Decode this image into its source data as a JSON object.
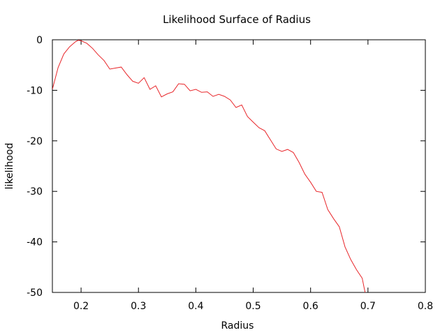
{
  "chart_data": {
    "type": "line",
    "title": "Likelihood Surface of Radius",
    "xlabel": "Radius",
    "ylabel": "likelihood",
    "xlim": [
      0.15,
      0.8
    ],
    "ylim": [
      -50,
      0
    ],
    "x_ticks": [
      0.2,
      0.3,
      0.4,
      0.5,
      0.6,
      0.7,
      0.8
    ],
    "x_tick_labels": [
      "0.2",
      "0.3",
      "0.4",
      "0.5",
      "0.6",
      "0.7",
      "0.8"
    ],
    "y_ticks": [
      0,
      -10,
      -20,
      -30,
      -40,
      -50
    ],
    "y_tick_labels": [
      "0",
      "-10",
      "-20",
      "-30",
      "-40",
      "-50"
    ],
    "grid": false,
    "series": [
      {
        "color": "#e8262a",
        "points": [
          [
            0.15,
            -9.8
          ],
          [
            0.16,
            -5.5
          ],
          [
            0.17,
            -2.8
          ],
          [
            0.18,
            -1.4
          ],
          [
            0.19,
            -0.4
          ],
          [
            0.195,
            -0.1
          ],
          [
            0.2,
            -0.2
          ],
          [
            0.21,
            -0.7
          ],
          [
            0.22,
            -1.7
          ],
          [
            0.23,
            -3.0
          ],
          [
            0.24,
            -4.1
          ],
          [
            0.25,
            -5.8
          ],
          [
            0.26,
            -5.6
          ],
          [
            0.27,
            -5.4
          ],
          [
            0.28,
            -6.9
          ],
          [
            0.29,
            -8.2
          ],
          [
            0.3,
            -8.6
          ],
          [
            0.31,
            -7.5
          ],
          [
            0.32,
            -9.8
          ],
          [
            0.33,
            -9.1
          ],
          [
            0.34,
            -11.3
          ],
          [
            0.35,
            -10.7
          ],
          [
            0.36,
            -10.3
          ],
          [
            0.37,
            -8.7
          ],
          [
            0.38,
            -8.8
          ],
          [
            0.39,
            -10.1
          ],
          [
            0.4,
            -9.8
          ],
          [
            0.41,
            -10.4
          ],
          [
            0.42,
            -10.3
          ],
          [
            0.43,
            -11.2
          ],
          [
            0.44,
            -10.8
          ],
          [
            0.45,
            -11.2
          ],
          [
            0.46,
            -11.9
          ],
          [
            0.47,
            -13.4
          ],
          [
            0.48,
            -12.9
          ],
          [
            0.49,
            -15.2
          ],
          [
            0.5,
            -16.3
          ],
          [
            0.51,
            -17.4
          ],
          [
            0.52,
            -18.0
          ],
          [
            0.53,
            -19.8
          ],
          [
            0.54,
            -21.6
          ],
          [
            0.55,
            -22.1
          ],
          [
            0.56,
            -21.7
          ],
          [
            0.57,
            -22.3
          ],
          [
            0.58,
            -24.3
          ],
          [
            0.59,
            -26.6
          ],
          [
            0.6,
            -28.2
          ],
          [
            0.61,
            -30.0
          ],
          [
            0.62,
            -30.2
          ],
          [
            0.63,
            -33.6
          ],
          [
            0.64,
            -35.4
          ],
          [
            0.65,
            -37.0
          ],
          [
            0.66,
            -41.0
          ],
          [
            0.67,
            -43.5
          ],
          [
            0.68,
            -45.5
          ],
          [
            0.69,
            -47.2
          ],
          [
            0.695,
            -50.0
          ]
        ]
      }
    ]
  }
}
